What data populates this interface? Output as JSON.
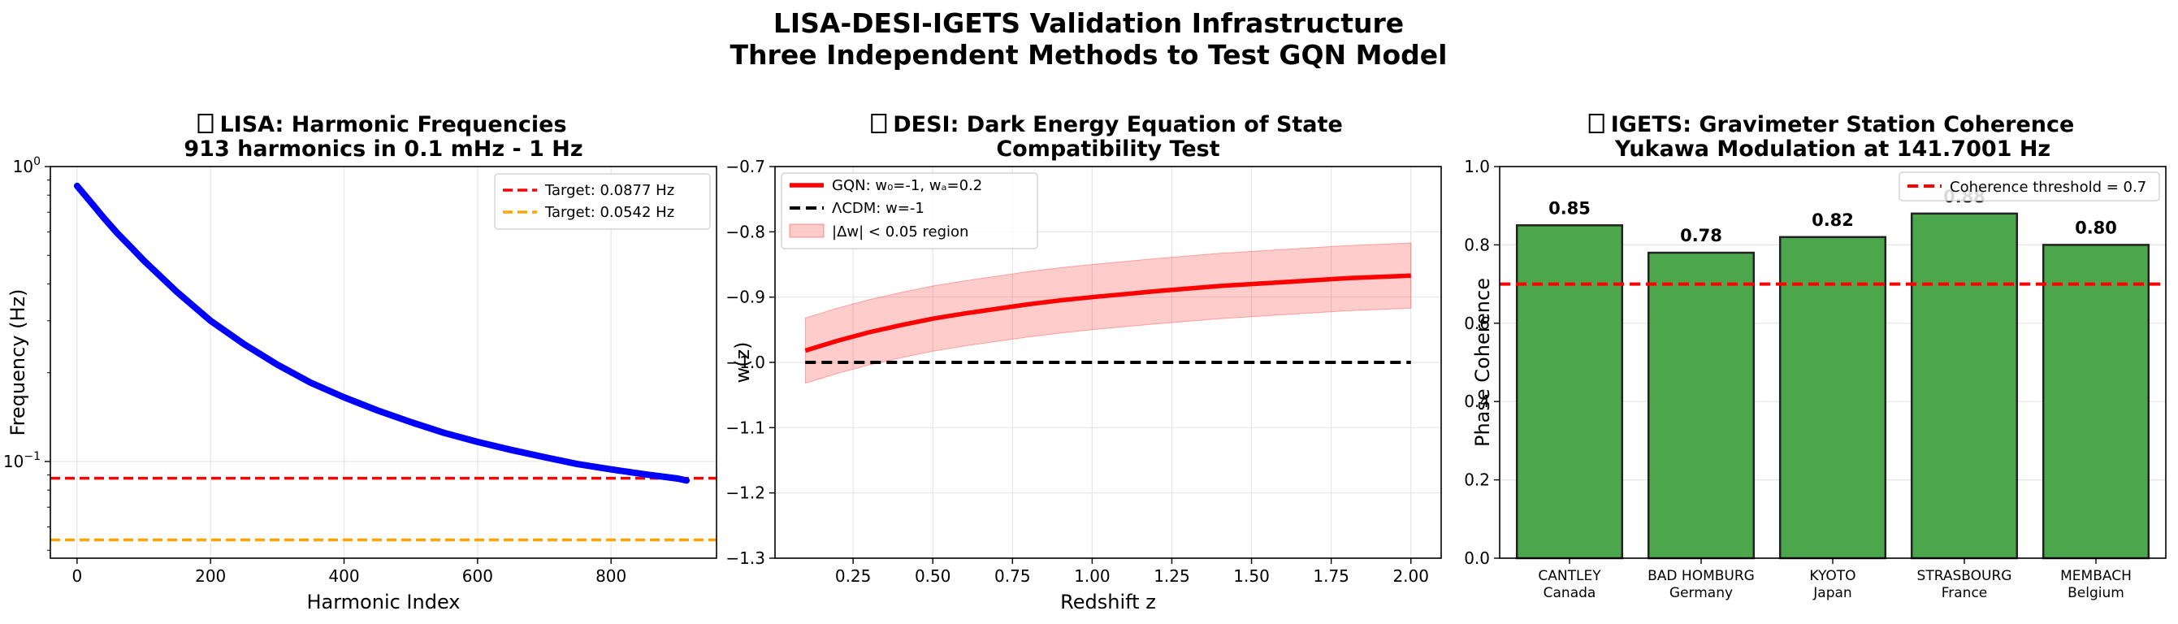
{
  "figure": {
    "title_line1": "LISA-DESI-IGETS Validation Infrastructure",
    "title_line2": "Three Independent Methods to Test GQN Model"
  },
  "chart_data": [
    {
      "type": "line",
      "icon": "box-glyph",
      "title_line1": "LISA: Harmonic Frequencies",
      "title_line2": "913 harmonics in 0.1 mHz - 1 Hz",
      "xlabel": "Harmonic Index",
      "ylabel": "Frequency (Hz)",
      "xlim": [
        -40,
        958
      ],
      "ylim": [
        0.047,
        1.0
      ],
      "yscale": "log",
      "xticks": [
        0,
        200,
        400,
        600,
        800
      ],
      "ytick_labels": [
        {
          "value": 1.0,
          "base": "10",
          "exp": "0"
        },
        {
          "value": 0.1,
          "base": "10",
          "exp": "−1"
        }
      ],
      "grid": true,
      "legend_position": "top-right",
      "series": [
        {
          "color": "#0000ff",
          "x": [
            0,
            20,
            40,
            60,
            80,
            100,
            150,
            200,
            250,
            300,
            350,
            400,
            450,
            500,
            550,
            600,
            650,
            700,
            750,
            800,
            850,
            900,
            913
          ],
          "y": [
            0.86,
            0.76,
            0.67,
            0.595,
            0.535,
            0.48,
            0.375,
            0.3,
            0.25,
            0.213,
            0.185,
            0.165,
            0.149,
            0.136,
            0.125,
            0.1165,
            0.1095,
            0.1035,
            0.098,
            0.094,
            0.0905,
            0.0875,
            0.0862
          ]
        }
      ],
      "hlines": [
        {
          "label": "Target: 0.0877 Hz",
          "y": 0.0877,
          "color": "#ff0000",
          "style": "dashed"
        },
        {
          "label": "Target: 0.0542 Hz",
          "y": 0.0542,
          "color": "#ffa500",
          "style": "dashed"
        }
      ]
    },
    {
      "type": "line",
      "icon": "box-glyph",
      "title_line1": "DESI: Dark Energy Equation of State",
      "title_line2": "Compatibility Test",
      "xlabel": "Redshift z",
      "ylabel": "w(z)",
      "xlim": [
        0.005,
        2.095
      ],
      "ylim": [
        -1.3,
        -0.7
      ],
      "xticks": [
        0.25,
        0.5,
        0.75,
        1.0,
        1.25,
        1.5,
        1.75,
        2.0
      ],
      "xtick_labels": [
        "0.25",
        "0.50",
        "0.75",
        "1.00",
        "1.25",
        "1.50",
        "1.75",
        "2.00"
      ],
      "yticks": [
        -1.3,
        -1.2,
        -1.1,
        -1.0,
        -0.9,
        -0.8,
        -0.7
      ],
      "ytick_labels": [
        "−1.3",
        "−1.2",
        "−1.1",
        "−1.0",
        "−0.9",
        "−0.8",
        "−0.7"
      ],
      "grid": true,
      "legend_position": "top-left",
      "series": [
        {
          "name": "GQN: w₀=-1, wₐ=0.2",
          "color": "#ff0000",
          "style": "solid",
          "x": [
            0.1,
            0.2,
            0.3,
            0.4,
            0.5,
            0.6,
            0.7,
            0.8,
            0.9,
            1.0,
            1.2,
            1.4,
            1.6,
            1.8,
            2.0
          ],
          "y": [
            -0.982,
            -0.967,
            -0.954,
            -0.943,
            -0.933,
            -0.925,
            -0.918,
            -0.911,
            -0.905,
            -0.9,
            -0.891,
            -0.883,
            -0.877,
            -0.871,
            -0.867
          ]
        },
        {
          "name": "ΛCDM: w=-1",
          "color": "#000000",
          "style": "dashed",
          "x": [
            0.1,
            2.0
          ],
          "y": [
            -1.0,
            -1.0
          ]
        }
      ],
      "band": {
        "name": "|Δw| < 0.05 region",
        "color": "#ff0000",
        "half_width": 0.05
      }
    },
    {
      "type": "bar",
      "icon": "box-glyph",
      "title_line1": "IGETS: Gravimeter Station Coherence",
      "title_line2": "Yukawa Modulation at 141.7001 Hz",
      "xlabel": "",
      "ylabel": "Phase Coherence",
      "ylim": [
        0,
        1.0
      ],
      "yticks": [
        0,
        0.2,
        0.4,
        0.6,
        0.8,
        1.0
      ],
      "ytick_labels": [
        "0.0",
        "0.2",
        "0.4",
        "0.6",
        "0.8",
        "1.0"
      ],
      "grid": true,
      "legend_position": "top-right",
      "bar_color": "#4ca64c",
      "categories": [
        {
          "station": "CANTLEY",
          "country": "Canada"
        },
        {
          "station": "BAD HOMBURG",
          "country": "Germany"
        },
        {
          "station": "KYOTO",
          "country": "Japan"
        },
        {
          "station": "STRASBOURG",
          "country": "France"
        },
        {
          "station": "MEMBACH",
          "country": "Belgium"
        }
      ],
      "values": [
        0.85,
        0.78,
        0.82,
        0.88,
        0.8
      ],
      "value_labels": [
        "0.85",
        "0.78",
        "0.82",
        "0.88",
        "0.80"
      ],
      "hline": {
        "label": "Coherence threshold = 0.7",
        "y": 0.7,
        "color": "#ff0000",
        "style": "dashed"
      }
    }
  ]
}
